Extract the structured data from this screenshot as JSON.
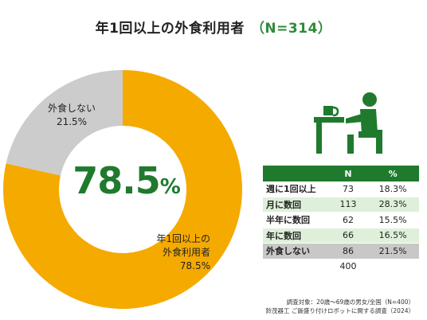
{
  "title": {
    "main": "年1回以上の外食利用者",
    "n": "（N=314）"
  },
  "center": {
    "value": "78.5",
    "unit": "%"
  },
  "chart_data": {
    "type": "pie",
    "title": "年1回以上の外食利用者",
    "slices": [
      {
        "label_line1": "年1回以上の",
        "label_line2": "外食利用者",
        "value": 78.5,
        "label_value": "78.5%",
        "color": "#f5aa00"
      },
      {
        "label_line1": "外食しない",
        "label_line2": "",
        "value": 21.5,
        "label_value": "21.5%",
        "color": "#cccccc"
      }
    ]
  },
  "table": {
    "headers": [
      "",
      "N",
      "%"
    ],
    "rows": [
      {
        "label": "週に1回以上",
        "n": "73",
        "pct": "18.3%",
        "style": "white"
      },
      {
        "label": "月に数回",
        "n": "113",
        "pct": "28.3%",
        "style": "green"
      },
      {
        "label": "半年に数回",
        "n": "62",
        "pct": "15.5%",
        "style": "white"
      },
      {
        "label": "年に数回",
        "n": "66",
        "pct": "16.5%",
        "style": "green"
      },
      {
        "label": "外食しない",
        "n": "86",
        "pct": "21.5%",
        "style": "gray"
      }
    ],
    "total": {
      "label": "",
      "n": "400",
      "pct": ""
    }
  },
  "footer": {
    "line1": "調査対象：20歳～69歳の男女/全国（N=400）",
    "line2": "鈴茂器工 ご飯盛り付けロボットに関する調査（2024）"
  },
  "colors": {
    "accent": "#1f7a2d",
    "eat": "#f5aa00",
    "not_eat": "#cccccc"
  },
  "icons": {
    "diner": "person-eating-icon"
  }
}
